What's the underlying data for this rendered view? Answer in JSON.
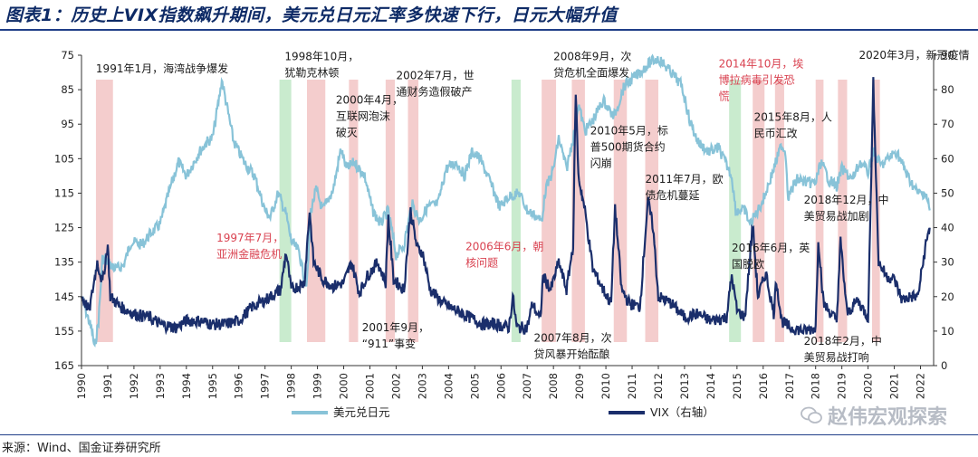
{
  "title": "图表1：历史上VIX指数飙升期间，美元兑日元汇率多快速下行，日元大幅升值",
  "source": "来源：Wind、国金证券研究所",
  "watermark": "赵伟宏观探索",
  "colors": {
    "usdjpy": "#88c3d8",
    "vix": "#1a2e6b",
    "shade_red": "#f2c4c4",
    "shade_green": "#bfe8c6",
    "rule": "#1f3e88"
  },
  "chart_data": {
    "type": "line",
    "left_axis": {
      "range": [
        75,
        165
      ],
      "inverted": true,
      "ticks": [
        75,
        85,
        95,
        105,
        115,
        125,
        135,
        145,
        155,
        165
      ]
    },
    "right_axis": {
      "range": [
        0,
        90
      ],
      "ticks": [
        0,
        10,
        20,
        30,
        40,
        50,
        60,
        70,
        80,
        90
      ]
    },
    "x_range": [
      1990,
      2022.5
    ],
    "x_ticks": [
      1990,
      1991,
      1992,
      1993,
      1994,
      1995,
      1996,
      1997,
      1998,
      1999,
      2000,
      2001,
      2002,
      2003,
      2004,
      2005,
      2006,
      2007,
      2008,
      2009,
      2010,
      2011,
      2012,
      2013,
      2014,
      2015,
      2016,
      2017,
      2018,
      2019,
      2020,
      2021,
      2022
    ],
    "legend": {
      "placement": "bottom",
      "items": [
        "美元兑日元",
        "VIX（右轴）"
      ]
    },
    "series": [
      {
        "name": "美元兑日元",
        "axis": "left",
        "points": [
          [
            1990.0,
            145
          ],
          [
            1990.2,
            150
          ],
          [
            1990.4,
            155
          ],
          [
            1990.5,
            160
          ],
          [
            1990.65,
            152
          ],
          [
            1990.8,
            134
          ],
          [
            1991.0,
            135
          ],
          [
            1991.3,
            137
          ],
          [
            1991.6,
            136
          ],
          [
            1991.9,
            129
          ],
          [
            1992.3,
            130
          ],
          [
            1992.6,
            127
          ],
          [
            1993.0,
            124
          ],
          [
            1993.4,
            113
          ],
          [
            1993.7,
            106
          ],
          [
            1994.0,
            110
          ],
          [
            1994.5,
            103
          ],
          [
            1994.8,
            100
          ],
          [
            1995.0,
            99
          ],
          [
            1995.15,
            92
          ],
          [
            1995.3,
            85
          ],
          [
            1995.35,
            82
          ],
          [
            1995.5,
            88
          ],
          [
            1995.8,
            100
          ],
          [
            1996.2,
            106
          ],
          [
            1996.6,
            110
          ],
          [
            1997.0,
            120
          ],
          [
            1997.2,
            122
          ],
          [
            1997.5,
            115
          ],
          [
            1997.8,
            121
          ],
          [
            1998.0,
            129
          ],
          [
            1998.3,
            132
          ],
          [
            1998.5,
            140
          ],
          [
            1998.6,
            141
          ],
          [
            1998.75,
            120
          ],
          [
            1998.95,
            114
          ],
          [
            1999.2,
            120
          ],
          [
            1999.6,
            114
          ],
          [
            1999.9,
            102
          ],
          [
            2000.1,
            108
          ],
          [
            2000.4,
            106
          ],
          [
            2000.8,
            110
          ],
          [
            2001.1,
            120
          ],
          [
            2001.4,
            124
          ],
          [
            2001.7,
            120
          ],
          [
            2002.0,
            133
          ],
          [
            2002.3,
            130
          ],
          [
            2002.6,
            118
          ],
          [
            2002.9,
            123
          ],
          [
            2003.2,
            119
          ],
          [
            2003.6,
            118
          ],
          [
            2003.9,
            108
          ],
          [
            2004.3,
            106
          ],
          [
            2004.6,
            110
          ],
          [
            2004.9,
            103
          ],
          [
            2005.2,
            105
          ],
          [
            2005.6,
            112
          ],
          [
            2005.95,
            119
          ],
          [
            2006.3,
            116
          ],
          [
            2006.7,
            115
          ],
          [
            2007.0,
            120
          ],
          [
            2007.4,
            122
          ],
          [
            2007.55,
            123
          ],
          [
            2007.7,
            114
          ],
          [
            2008.0,
            108
          ],
          [
            2008.2,
            99
          ],
          [
            2008.5,
            108
          ],
          [
            2008.8,
            97
          ],
          [
            2008.95,
            89
          ],
          [
            2009.2,
            97
          ],
          [
            2009.5,
            94
          ],
          [
            2009.9,
            88
          ],
          [
            2010.3,
            93
          ],
          [
            2010.7,
            84
          ],
          [
            2011.0,
            82
          ],
          [
            2011.3,
            80
          ],
          [
            2011.7,
            77
          ],
          [
            2012.0,
            76
          ],
          [
            2012.5,
            80
          ],
          [
            2012.9,
            84
          ],
          [
            2013.2,
            94
          ],
          [
            2013.5,
            100
          ],
          [
            2013.9,
            103
          ],
          [
            2014.3,
            102
          ],
          [
            2014.8,
            110
          ],
          [
            2014.95,
            120
          ],
          [
            2015.3,
            120
          ],
          [
            2015.5,
            124
          ],
          [
            2015.8,
            120
          ],
          [
            2016.0,
            117
          ],
          [
            2016.4,
            108
          ],
          [
            2016.7,
            101
          ],
          [
            2016.85,
            103
          ],
          [
            2016.95,
            116
          ],
          [
            2017.3,
            111
          ],
          [
            2017.7,
            112
          ],
          [
            2018.0,
            112
          ],
          [
            2018.2,
            106
          ],
          [
            2018.5,
            111
          ],
          [
            2018.8,
            113
          ],
          [
            2019.0,
            108
          ],
          [
            2019.4,
            111
          ],
          [
            2019.7,
            106
          ],
          [
            2020.0,
            109
          ],
          [
            2020.2,
            103
          ],
          [
            2020.5,
            107
          ],
          [
            2020.9,
            104
          ],
          [
            2021.1,
            103
          ],
          [
            2021.5,
            110
          ],
          [
            2021.9,
            115
          ],
          [
            2022.2,
            115
          ],
          [
            2022.35,
            120
          ]
        ]
      },
      {
        "name": "VIX（右轴）",
        "axis": "right",
        "points": [
          [
            1990.0,
            20
          ],
          [
            1990.3,
            16
          ],
          [
            1990.6,
            30
          ],
          [
            1990.8,
            24
          ],
          [
            1991.0,
            35
          ],
          [
            1991.1,
            20
          ],
          [
            1991.5,
            17
          ],
          [
            1992.0,
            15
          ],
          [
            1992.6,
            14
          ],
          [
            1993.0,
            12
          ],
          [
            1993.6,
            11
          ],
          [
            1994.0,
            13
          ],
          [
            1994.5,
            13
          ],
          [
            1995.0,
            12
          ],
          [
            1995.5,
            12
          ],
          [
            1996.0,
            13
          ],
          [
            1996.5,
            17
          ],
          [
            1997.0,
            19
          ],
          [
            1997.6,
            22
          ],
          [
            1997.8,
            33
          ],
          [
            1998.0,
            22
          ],
          [
            1998.5,
            24
          ],
          [
            1998.7,
            45
          ],
          [
            1998.85,
            30
          ],
          [
            1999.2,
            25
          ],
          [
            1999.6,
            23
          ],
          [
            2000.0,
            24
          ],
          [
            2000.3,
            30
          ],
          [
            2000.6,
            21
          ],
          [
            2000.9,
            26
          ],
          [
            2001.3,
            30
          ],
          [
            2001.6,
            24
          ],
          [
            2001.7,
            43
          ],
          [
            2001.9,
            25
          ],
          [
            2002.3,
            22
          ],
          [
            2002.55,
            45
          ],
          [
            2002.8,
            34
          ],
          [
            2003.0,
            33
          ],
          [
            2003.3,
            22
          ],
          [
            2003.8,
            18
          ],
          [
            2004.3,
            16
          ],
          [
            2004.8,
            14
          ],
          [
            2005.3,
            12
          ],
          [
            2005.8,
            12
          ],
          [
            2006.3,
            11
          ],
          [
            2006.45,
            20
          ],
          [
            2006.6,
            11
          ],
          [
            2007.0,
            11
          ],
          [
            2007.2,
            18
          ],
          [
            2007.5,
            13
          ],
          [
            2007.6,
            26
          ],
          [
            2007.9,
            22
          ],
          [
            2008.2,
            30
          ],
          [
            2008.5,
            22
          ],
          [
            2008.75,
            35
          ],
          [
            2008.85,
            80
          ],
          [
            2008.95,
            55
          ],
          [
            2009.2,
            45
          ],
          [
            2009.5,
            28
          ],
          [
            2009.9,
            22
          ],
          [
            2010.2,
            18
          ],
          [
            2010.35,
            46
          ],
          [
            2010.6,
            22
          ],
          [
            2010.9,
            18
          ],
          [
            2011.3,
            17
          ],
          [
            2011.6,
            48
          ],
          [
            2011.8,
            40
          ],
          [
            2012.0,
            20
          ],
          [
            2012.5,
            18
          ],
          [
            2013.0,
            14
          ],
          [
            2013.5,
            15
          ],
          [
            2014.0,
            13
          ],
          [
            2014.6,
            14
          ],
          [
            2014.8,
            26
          ],
          [
            2015.0,
            16
          ],
          [
            2015.3,
            14
          ],
          [
            2015.6,
            41
          ],
          [
            2015.8,
            20
          ],
          [
            2016.1,
            27
          ],
          [
            2016.4,
            15
          ],
          [
            2016.5,
            25
          ],
          [
            2016.7,
            13
          ],
          [
            2017.0,
            11
          ],
          [
            2017.6,
            10
          ],
          [
            2018.0,
            11
          ],
          [
            2018.1,
            37
          ],
          [
            2018.3,
            18
          ],
          [
            2018.8,
            13
          ],
          [
            2018.95,
            36
          ],
          [
            2019.2,
            15
          ],
          [
            2019.6,
            19
          ],
          [
            2020.0,
            14
          ],
          [
            2020.2,
            82
          ],
          [
            2020.4,
            30
          ],
          [
            2020.7,
            26
          ],
          [
            2021.0,
            25
          ],
          [
            2021.3,
            19
          ],
          [
            2021.6,
            20
          ],
          [
            2021.9,
            20
          ],
          [
            2022.1,
            30
          ],
          [
            2022.2,
            35
          ],
          [
            2022.35,
            40
          ]
        ]
      }
    ],
    "shaded_periods": [
      {
        "start": 1990.55,
        "end": 1991.2,
        "color": "red"
      },
      {
        "start": 1997.55,
        "end": 1998.0,
        "color": "green"
      },
      {
        "start": 1998.6,
        "end": 1999.3,
        "color": "red"
      },
      {
        "start": 2000.2,
        "end": 2000.55,
        "color": "red"
      },
      {
        "start": 2001.6,
        "end": 2001.95,
        "color": "red"
      },
      {
        "start": 2002.45,
        "end": 2002.85,
        "color": "red"
      },
      {
        "start": 2006.4,
        "end": 2006.75,
        "color": "green"
      },
      {
        "start": 2007.55,
        "end": 2008.1,
        "color": "red"
      },
      {
        "start": 2008.7,
        "end": 2009.2,
        "color": "red"
      },
      {
        "start": 2010.3,
        "end": 2010.8,
        "color": "red"
      },
      {
        "start": 2011.5,
        "end": 2012.0,
        "color": "red"
      },
      {
        "start": 2014.7,
        "end": 2015.15,
        "color": "green"
      },
      {
        "start": 2015.6,
        "end": 2016.05,
        "color": "red"
      },
      {
        "start": 2016.45,
        "end": 2016.8,
        "color": "red"
      },
      {
        "start": 2018.0,
        "end": 2018.3,
        "color": "red"
      },
      {
        "start": 2018.85,
        "end": 2019.2,
        "color": "red"
      },
      {
        "start": 2020.15,
        "end": 2020.45,
        "color": "red"
      }
    ],
    "annotations": [
      {
        "lines": [
          "1991年1月，海湾战争爆发"
        ],
        "x": 1990.55,
        "axis_value": 80,
        "color": "dark"
      },
      {
        "lines": [
          "1998年10月，",
          "犹勒克林顿"
        ],
        "x": 1997.75,
        "axis_value": 76.5,
        "color": "dark"
      },
      {
        "lines": [
          "2000年4月，",
          "互联网泡沫",
          "破灭"
        ],
        "x": 1999.7,
        "axis_value": 89,
        "color": "dark"
      },
      {
        "lines": [
          "2002年7月，世",
          "通财务造假破产"
        ],
        "x": 2002.0,
        "axis_value": 82,
        "color": "dark"
      },
      {
        "lines": [
          "2008年9月，次",
          "贷危机全面爆发"
        ],
        "x": 2008.0,
        "axis_value": 76.5,
        "color": "dark"
      },
      {
        "lines": [
          "2014年10月，埃",
          "博拉病毒引发恐",
          "慌"
        ],
        "x": 2014.3,
        "axis_value": 78.5,
        "color": "red"
      },
      {
        "lines": [
          "2020年3月，新冠疫情"
        ],
        "x": 2019.65,
        "axis_value": 76,
        "color": "dark"
      },
      {
        "lines": [
          "2010年5月，标",
          "普500期货合约",
          "闪崩"
        ],
        "x": 2009.4,
        "axis_value": 98,
        "color": "dark"
      },
      {
        "lines": [
          "2015年8月，人",
          "民币汇改"
        ],
        "x": 2015.65,
        "axis_value": 94,
        "color": "dark"
      },
      {
        "lines": [
          "2011年7月，欧",
          "债危机蔓延"
        ],
        "x": 2011.5,
        "axis_value": 112,
        "color": "dark"
      },
      {
        "lines": [
          "1997年7月，",
          "亚洲金融危机"
        ],
        "x": 1995.15,
        "axis_value": 129,
        "color": "red"
      },
      {
        "lines": [
          "2006年6月，朝",
          "核问题"
        ],
        "x": 2004.65,
        "axis_value": 131.5,
        "color": "red"
      },
      {
        "lines": [
          "2018年12月，中",
          "美贸易战加剧"
        ],
        "x": 2017.55,
        "axis_value": 118,
        "color": "dark"
      },
      {
        "lines": [
          "2016年6月，英",
          "国脱欧"
        ],
        "x": 2014.8,
        "axis_value": 132,
        "color": "dark"
      },
      {
        "lines": [
          "2001年9月，",
          "“911”事变"
        ],
        "x": 2000.7,
        "axis_value": 155,
        "color": "dark"
      },
      {
        "lines": [
          "2007年8月，次",
          "贷风暴开始酝酿"
        ],
        "x": 2007.25,
        "axis_value": 158,
        "color": "dark"
      },
      {
        "lines": [
          "2018年2月，中",
          "美贸易战打响"
        ],
        "x": 2017.55,
        "axis_value": 159,
        "color": "dark"
      }
    ]
  }
}
